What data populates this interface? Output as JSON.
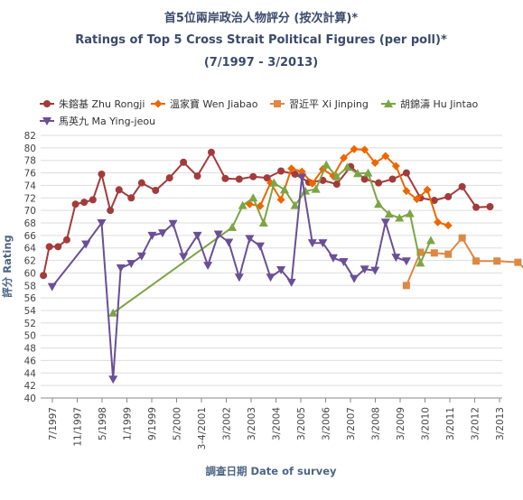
{
  "chart_data": {
    "type": "line",
    "title": "首5位兩岸政治人物評分 (按次計算)*",
    "subtitle": "Ratings of Top 5 Cross Strait Political Figures (per poll)*",
    "period": "(7/1997 - 3/2013)",
    "xlabel": "調查日期 Date of survey",
    "ylabel": "評分 Rating",
    "ylim": [
      40,
      82
    ],
    "y_ticks": [
      40,
      42,
      44,
      46,
      48,
      50,
      52,
      54,
      56,
      58,
      60,
      62,
      64,
      66,
      68,
      70,
      72,
      74,
      76,
      78,
      80,
      82
    ],
    "x_ticks": [
      "7/1997",
      "11/1997",
      "5/1998",
      "1/1999",
      "9/1999",
      "5/2000",
      "3-4/2001",
      "3/2002",
      "3/2003",
      "3/2004",
      "3/2005",
      "3/2006",
      "3/2007",
      "3/2008",
      "3/2009",
      "3/2010",
      "3/2011",
      "3/2012",
      "3/2013"
    ],
    "grid": true,
    "legend_position": "top",
    "series": [
      {
        "name": "朱鎔基 Zhu Rongji",
        "color": "#a33b3b",
        "marker": "circle",
        "points": [
          [
            1997.58,
            59.6
          ],
          [
            1997.75,
            64.2
          ],
          [
            1998.0,
            64.2
          ],
          [
            1998.25,
            65.3
          ],
          [
            1998.5,
            71.0
          ],
          [
            1998.75,
            71.3
          ],
          [
            1999.0,
            71.7
          ],
          [
            1999.25,
            75.8
          ],
          [
            1999.5,
            70.0
          ],
          [
            1999.75,
            73.3
          ],
          [
            2000.1,
            72.0
          ],
          [
            2000.4,
            74.4
          ],
          [
            2000.8,
            73.2
          ],
          [
            2001.2,
            75.2
          ],
          [
            2001.6,
            77.7
          ],
          [
            2002.0,
            75.5
          ],
          [
            2002.4,
            79.3
          ],
          [
            2002.8,
            75.1
          ],
          [
            2003.2,
            75.0
          ],
          [
            2003.6,
            75.4
          ],
          [
            2004.0,
            75.2
          ],
          [
            2004.4,
            76.3
          ],
          [
            2004.8,
            75.8
          ],
          [
            2005.2,
            74.5
          ],
          [
            2005.6,
            74.8
          ],
          [
            2006.0,
            74.2
          ],
          [
            2006.4,
            77.0
          ],
          [
            2006.8,
            75.0
          ],
          [
            2007.2,
            74.4
          ],
          [
            2007.6,
            75.0
          ],
          [
            2008.0,
            76.0
          ],
          [
            2008.4,
            72.0
          ],
          [
            2008.8,
            71.6
          ],
          [
            2009.2,
            72.2
          ],
          [
            2009.6,
            73.8
          ],
          [
            2010.0,
            70.5
          ],
          [
            2010.4,
            70.6
          ]
        ]
      },
      {
        "name": "溫家寶 Wen Jiabao",
        "color": "#ee6600",
        "marker": "diamond",
        "points": [
          [
            2003.5,
            71.0
          ],
          [
            2003.8,
            70.7
          ],
          [
            2004.1,
            74.4
          ],
          [
            2004.4,
            71.7
          ],
          [
            2004.7,
            76.7
          ],
          [
            2005.0,
            76.2
          ],
          [
            2005.3,
            74.3
          ],
          [
            2005.6,
            76.6
          ],
          [
            2005.9,
            75.5
          ],
          [
            2006.2,
            78.4
          ],
          [
            2006.5,
            79.8
          ],
          [
            2006.8,
            79.7
          ],
          [
            2007.1,
            77.6
          ],
          [
            2007.4,
            78.7
          ],
          [
            2007.7,
            77.1
          ],
          [
            2008.0,
            73.1
          ],
          [
            2008.3,
            71.8
          ],
          [
            2008.6,
            73.3
          ],
          [
            2008.9,
            68.1
          ],
          [
            2009.2,
            67.6
          ]
        ]
      },
      {
        "name": "習近平 Xi Jinping",
        "color": "#dd8844",
        "marker": "square",
        "points": [
          [
            2008.0,
            58.0
          ],
          [
            2008.4,
            63.3
          ],
          [
            2008.8,
            63.2
          ],
          [
            2009.2,
            63.0
          ],
          [
            2009.6,
            65.6
          ],
          [
            2010.0,
            61.9
          ],
          [
            2010.6,
            61.9
          ],
          [
            2011.2,
            61.7
          ],
          [
            2011.6,
            59.6
          ],
          [
            2012.0,
            66.6
          ]
        ]
      },
      {
        "name": "胡錦濤 Hu Jintao",
        "color": "#7ca544",
        "marker": "triangle",
        "points": [
          [
            1999.58,
            53.6
          ],
          [
            2003.0,
            67.3
          ],
          [
            2003.3,
            70.8
          ],
          [
            2003.6,
            72.0
          ],
          [
            2003.9,
            68.0
          ],
          [
            2004.2,
            74.4
          ],
          [
            2004.5,
            73.3
          ],
          [
            2004.8,
            70.8
          ],
          [
            2005.1,
            73.1
          ],
          [
            2005.4,
            73.4
          ],
          [
            2005.7,
            77.3
          ],
          [
            2006.0,
            75.4
          ],
          [
            2006.3,
            76.9
          ],
          [
            2006.6,
            75.9
          ],
          [
            2006.9,
            76.0
          ],
          [
            2007.2,
            71.0
          ],
          [
            2007.5,
            69.4
          ],
          [
            2007.8,
            68.8
          ],
          [
            2008.1,
            69.5
          ],
          [
            2008.4,
            61.6
          ],
          [
            2008.7,
            65.2
          ]
        ]
      },
      {
        "name": "馬英九 Ma Ying-jeou",
        "color": "#6b4f96",
        "marker": "triangle-down",
        "points": [
          [
            1997.83,
            57.8
          ],
          [
            1998.8,
            64.6
          ],
          [
            1999.25,
            68.0
          ],
          [
            1999.58,
            43.0
          ],
          [
            1999.8,
            60.8
          ],
          [
            2000.1,
            61.5
          ],
          [
            2000.4,
            62.7
          ],
          [
            2000.7,
            66.0
          ],
          [
            2001.0,
            66.4
          ],
          [
            2001.3,
            67.9
          ],
          [
            2001.6,
            62.6
          ],
          [
            2002.0,
            66.0
          ],
          [
            2002.3,
            61.2
          ],
          [
            2002.6,
            66.2
          ],
          [
            2002.9,
            64.9
          ],
          [
            2003.2,
            59.3
          ],
          [
            2003.5,
            65.5
          ],
          [
            2003.8,
            64.3
          ],
          [
            2004.1,
            59.3
          ],
          [
            2004.4,
            60.5
          ],
          [
            2004.7,
            58.5
          ],
          [
            2005.0,
            75.3
          ],
          [
            2005.3,
            64.8
          ],
          [
            2005.6,
            64.8
          ],
          [
            2005.9,
            62.4
          ],
          [
            2006.2,
            61.8
          ],
          [
            2006.5,
            59.1
          ],
          [
            2006.8,
            60.6
          ],
          [
            2007.1,
            60.4
          ],
          [
            2007.4,
            68.1
          ],
          [
            2007.7,
            62.5
          ],
          [
            2008.0,
            61.9
          ]
        ]
      }
    ]
  }
}
